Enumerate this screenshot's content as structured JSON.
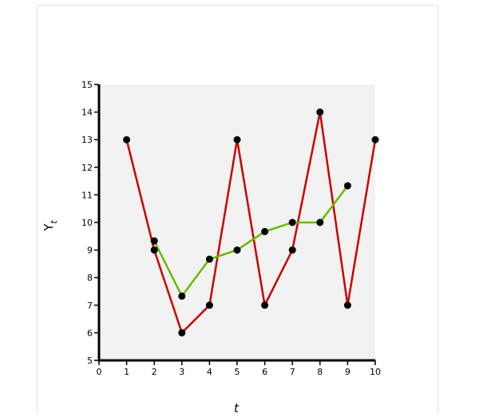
{
  "chart_data": {
    "type": "line",
    "x_label": "t",
    "y_label": "Y",
    "y_label_sub": "t",
    "x": [
      1,
      2,
      3,
      4,
      5,
      6,
      7,
      8,
      9,
      10
    ],
    "series": [
      {
        "color": "#cc0000",
        "values": [
          13,
          9,
          6,
          7,
          13,
          7,
          9,
          14,
          7,
          13
        ]
      },
      {
        "color": "#66bb00",
        "values": [
          null,
          9.33,
          7.33,
          8.67,
          9,
          9.67,
          10,
          10,
          11.33,
          null
        ]
      }
    ],
    "xlim": [
      0,
      10
    ],
    "xticks": [
      0,
      1,
      2,
      3,
      4,
      5,
      6,
      7,
      8,
      9,
      10
    ],
    "ylim": [
      5,
      15
    ],
    "yticks": [
      5,
      6,
      7,
      8,
      9,
      10,
      11,
      12,
      13,
      14,
      15
    ]
  }
}
